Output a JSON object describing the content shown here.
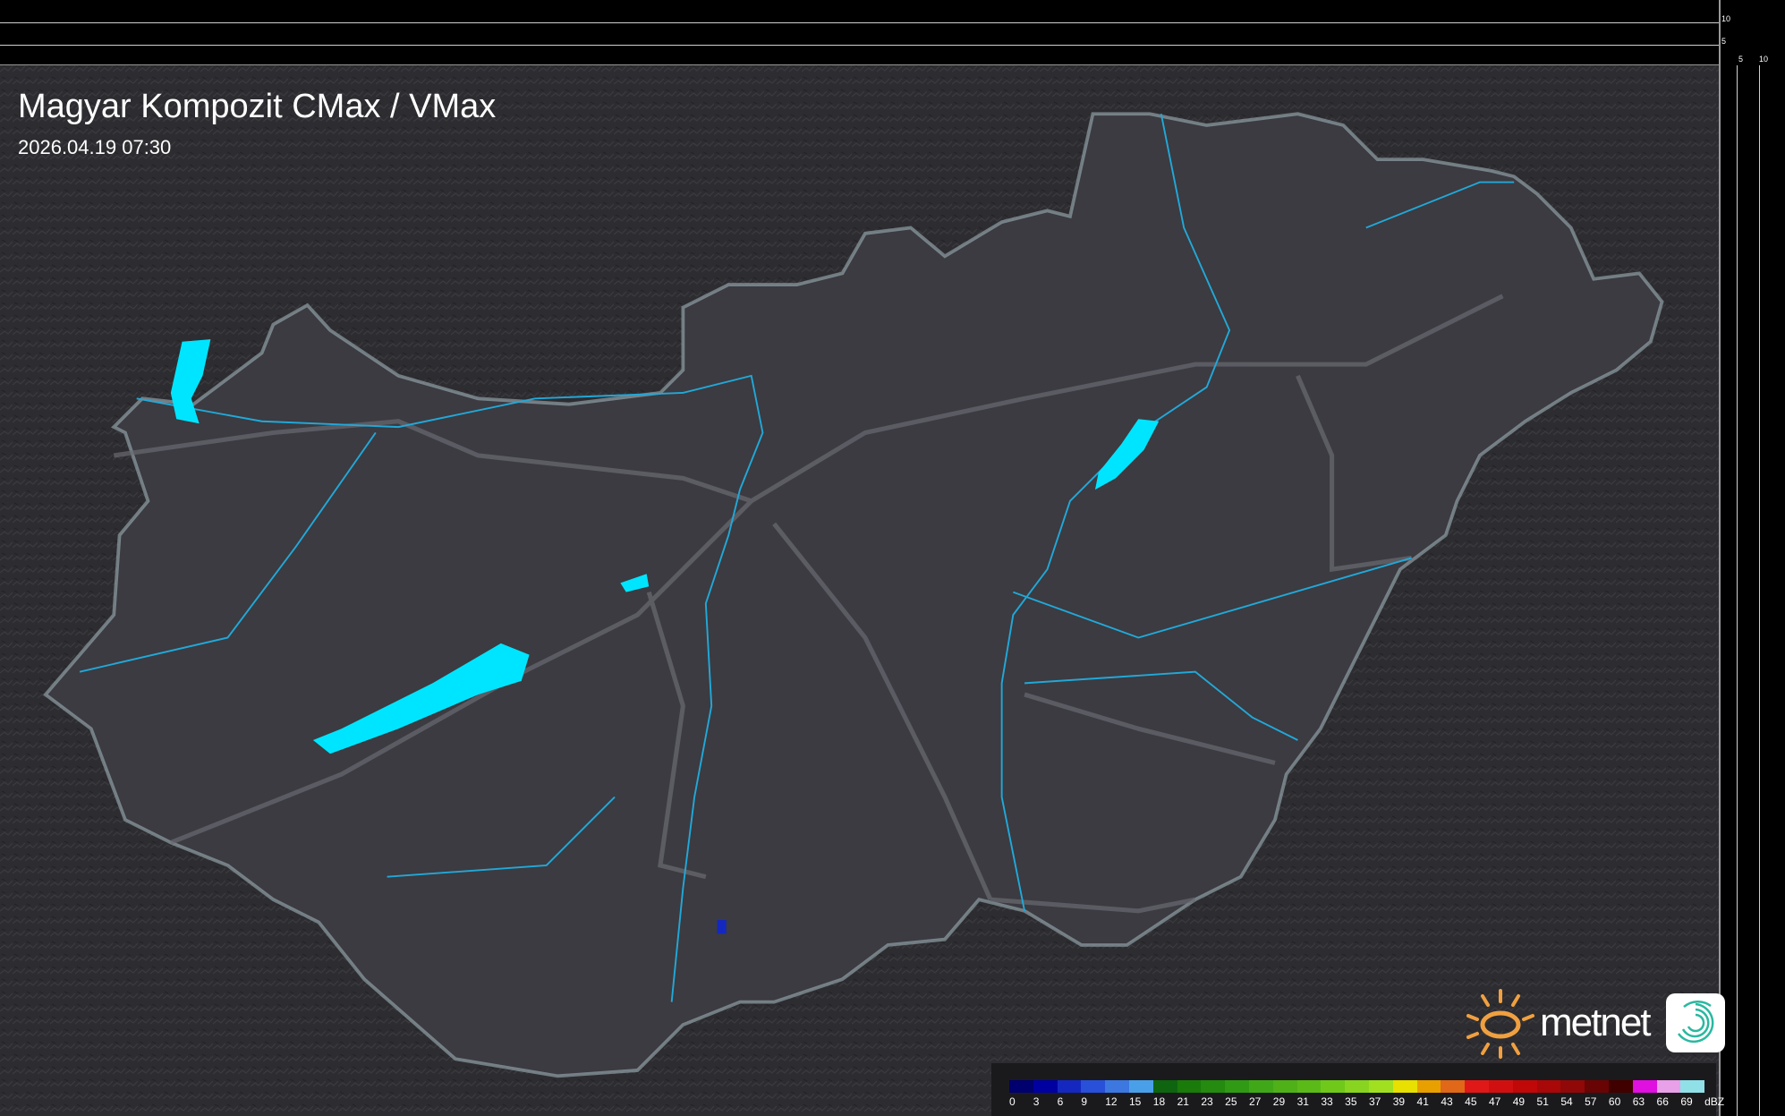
{
  "header": {
    "title": "Magyar Kompozit CMax / VMax",
    "timestamp": "2026.04.19 07:30"
  },
  "profile_axes": {
    "side_ticks": [
      "10",
      "5"
    ],
    "bottom_ticks": [
      "5",
      "10"
    ]
  },
  "legend": {
    "unit": "dBZ",
    "labels": [
      "0",
      "3",
      "6",
      "9",
      "12",
      "15",
      "18",
      "21",
      "23",
      "25",
      "27",
      "29",
      "31",
      "33",
      "35",
      "37",
      "39",
      "41",
      "43",
      "45",
      "47",
      "49",
      "51",
      "54",
      "57",
      "60",
      "63",
      "66",
      "69"
    ],
    "colors": [
      "#00006e",
      "#0000a0",
      "#1428c0",
      "#2850d8",
      "#3c78e0",
      "#4aa0e8",
      "#0f6410",
      "#1a7a0a",
      "#248a10",
      "#309a14",
      "#40a818",
      "#50b018",
      "#5cba18",
      "#70c81a",
      "#88d420",
      "#a0e020",
      "#e8e000",
      "#e8a000",
      "#e06818",
      "#e01818",
      "#d01010",
      "#c00808",
      "#a80808",
      "#900808",
      "#680404",
      "#400000",
      "#e010e0",
      "#e8a0e8",
      "#90e0e8"
    ]
  },
  "branding": {
    "logo": "metnet",
    "app_icon": "spiral-app-icon"
  },
  "colors": {
    "water": "#00e5ff",
    "border": "#9fb0b8",
    "river": "#22a8d8",
    "land": "#3b3b41"
  }
}
